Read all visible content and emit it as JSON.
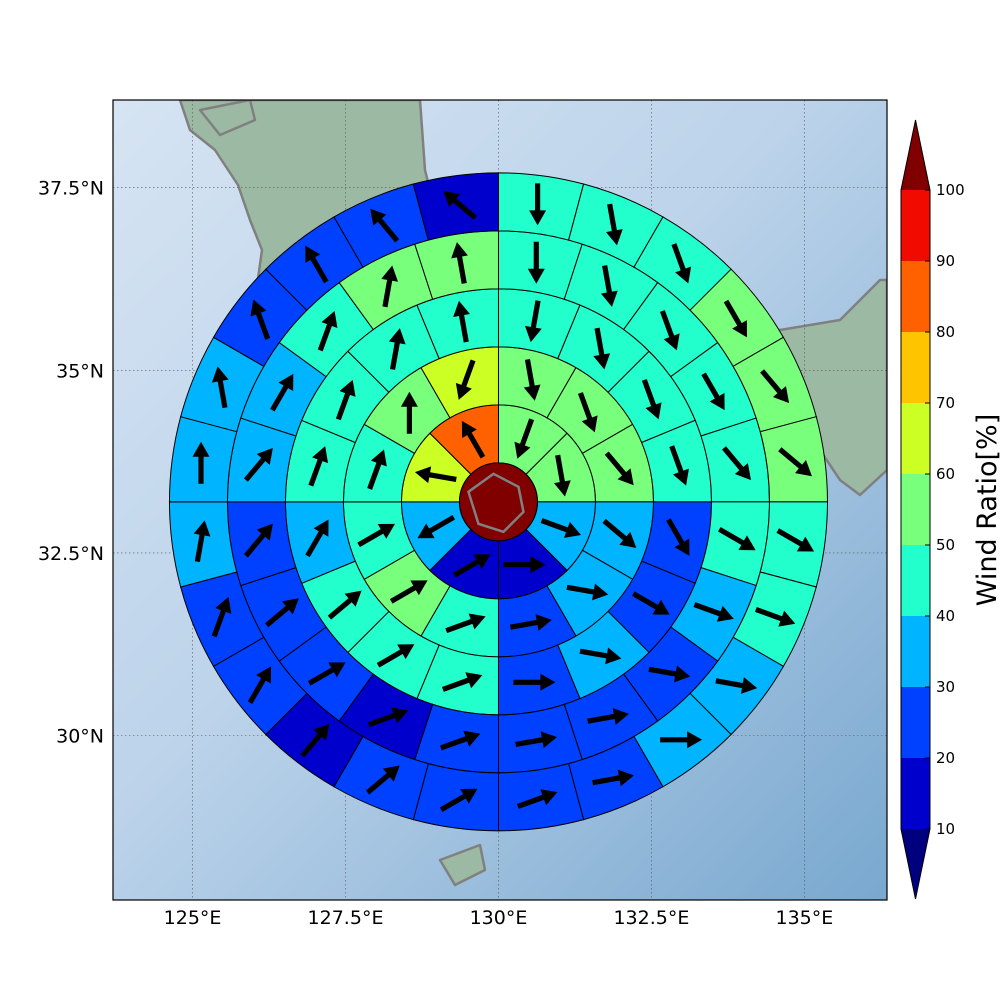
{
  "map": {
    "lon_range": [
      123.7,
      136.35
    ],
    "lat_range": [
      27.75,
      38.7
    ],
    "lon_ticks": [
      {
        "value": 125.0,
        "label": "125°E"
      },
      {
        "value": 127.5,
        "label": "127.5°E"
      },
      {
        "value": 130.0,
        "label": "130°E"
      },
      {
        "value": 132.5,
        "label": "132.5°E"
      },
      {
        "value": 135.0,
        "label": "135°E"
      }
    ],
    "lat_ticks": [
      {
        "value": 30.0,
        "label": "30°N"
      },
      {
        "value": 32.5,
        "label": "32.5°N"
      },
      {
        "value": 35.0,
        "label": "35°N"
      },
      {
        "value": 37.5,
        "label": "37.5°N"
      }
    ],
    "gridlines": true,
    "center": {
      "lon": 130.0,
      "lat": 33.2
    }
  },
  "colorbar": {
    "label": "Wind Ratio[%]",
    "levels": [
      10,
      20,
      30,
      40,
      50,
      60,
      70,
      80,
      90,
      100
    ],
    "tick_labels": [
      "10",
      "20",
      "30",
      "40",
      "50",
      "60",
      "70",
      "80",
      "90",
      "100"
    ],
    "colors": [
      "#0000cd",
      "#0040ff",
      "#00b4ff",
      "#22ffcc",
      "#78ff7c",
      "#ccff24",
      "#ffc400",
      "#ff6000",
      "#f00a00"
    ],
    "under_color": "#00007f",
    "over_color": "#800000",
    "extend": "both"
  },
  "polar_grid": {
    "center_value": 100,
    "rings": [
      {
        "sectors": 8,
        "values": [
          55,
          55,
          35,
          15,
          15,
          35,
          65,
          85
        ],
        "dirs": [
          200,
          170,
          110,
          90,
          60,
          240,
          280,
          330
        ]
      },
      {
        "sectors": 12,
        "values": [
          55,
          55,
          55,
          35,
          35,
          25,
          45,
          55,
          45,
          45,
          55,
          65
        ],
        "dirs": [
          170,
          160,
          140,
          130,
          100,
          80,
          70,
          60,
          60,
          20,
          0,
          200
        ]
      },
      {
        "sectors": 16,
        "values": [
          45,
          45,
          45,
          45,
          25,
          25,
          35,
          25,
          45,
          45,
          45,
          35,
          45,
          45,
          45,
          45
        ],
        "dirs": [
          190,
          170,
          160,
          160,
          150,
          120,
          100,
          90,
          70,
          60,
          50,
          30,
          20,
          20,
          10,
          350
        ]
      },
      {
        "sectors": 20,
        "values": [
          45,
          45,
          45,
          45,
          45,
          45,
          35,
          25,
          25,
          25,
          25,
          15,
          25,
          25,
          25,
          35,
          35,
          45,
          55,
          55
        ],
        "dirs": [
          180,
          170,
          160,
          150,
          140,
          120,
          110,
          100,
          80,
          80,
          70,
          70,
          60,
          50,
          40,
          40,
          30,
          20,
          10,
          350
        ]
      },
      {
        "sectors": 24,
        "values": [
          45,
          45,
          45,
          55,
          55,
          55,
          45,
          45,
          35,
          35,
          25,
          25,
          25,
          25,
          15,
          25,
          25,
          35,
          35,
          35,
          25,
          25,
          25,
          15
        ],
        "dirs": [
          180,
          170,
          160,
          150,
          140,
          130,
          120,
          110,
          100,
          90,
          80,
          70,
          60,
          50,
          40,
          30,
          20,
          10,
          0,
          350,
          340,
          330,
          320,
          310
        ]
      }
    ]
  },
  "land": {
    "land_color": "#9cb9a4",
    "sea_color": "#a9c9e6",
    "coast_color": "#808080"
  }
}
